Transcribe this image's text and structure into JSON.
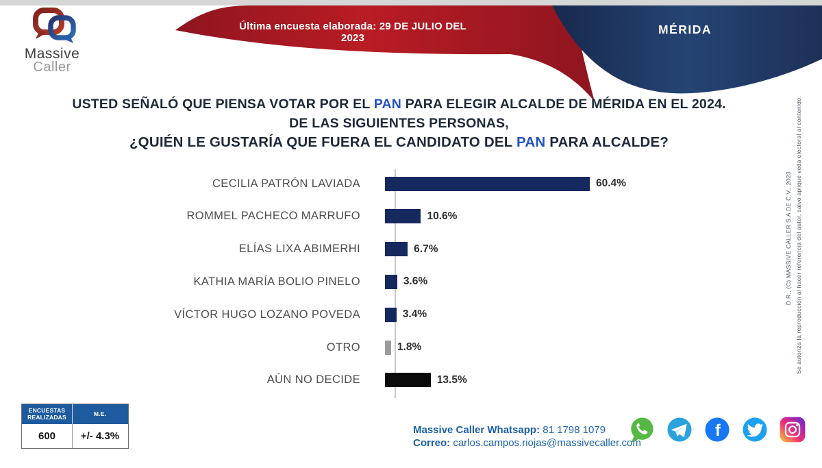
{
  "header": {
    "logo": {
      "line1": "Massive",
      "line2": "Caller"
    },
    "banner_label": "Última encuesta elaborada:",
    "banner_date": "29 DE JULIO DEL 2023",
    "region": "MÉRIDA",
    "colors": {
      "banner_red": "#a81b23",
      "banner_blue": "#203a66"
    }
  },
  "question": {
    "line1_pre": "USTED SEÑALÓ QUE PIENSA VOTAR POR EL ",
    "line1_highlight": "PAN",
    "line1_post": " PARA ELEGIR ALCALDE DE MÉRIDA  EN EL 2024.",
    "line2": "DE LAS SIGUIENTES PERSONAS,",
    "line3_pre": "¿QUIÉN LE GUSTARÍA QUE FUERA EL CANDIDATO DEL ",
    "line3_highlight": "PAN",
    "line3_post": " PARA ALCALDE?",
    "highlight_color": "#2253c4"
  },
  "chart_data": {
    "type": "bar",
    "orientation": "horizontal",
    "categories": [
      "CECILIA PATRÓN LAVIADA",
      "ROMMEL PACHECO MARRUFO",
      "ELÍAS LIXA ABIMERHI",
      "KATHIA MARÍA BOLIO PINELO",
      "VÍCTOR HUGO LOZANO POVEDA",
      "OTRO",
      "AÚN NO DECIDE"
    ],
    "values": [
      60.4,
      10.6,
      6.7,
      3.6,
      3.4,
      1.8,
      13.5
    ],
    "labels": [
      "60.4%",
      "10.6%",
      "6.7%",
      "3.6%",
      "3.4%",
      "1.8%",
      "13.5%"
    ],
    "bar_colors": [
      "#16295f",
      "#16295f",
      "#16295f",
      "#16295f",
      "#16295f",
      "#9b9b9b",
      "#0a0a0a"
    ],
    "value_suffix": "%",
    "xlim": [
      0,
      65
    ],
    "grid": false,
    "title": "",
    "xlabel": "",
    "ylabel": ""
  },
  "stats": {
    "col1_header": "ENCUESTAS REALIZADAS",
    "col2_header": "M.E.",
    "col1_value": "600",
    "col2_value": "+/- 4.3%"
  },
  "contact": {
    "whatsapp_label": "Massive Caller Whatsapp:",
    "whatsapp_number": "81 1798 1079",
    "email_label": "Correo:",
    "email": "carlos.campos.riojas@massivecaller.com"
  },
  "social_icons": [
    "whatsapp",
    "telegram",
    "facebook",
    "twitter",
    "instagram"
  ],
  "fine_print": {
    "line1": "D.R., (C) MASSIVE CALLER S.A DE C.V., 2023",
    "line2": "Se autoriza la reproducción al hacer referencia del autor, salvo aplique veda electoral al contenido."
  }
}
